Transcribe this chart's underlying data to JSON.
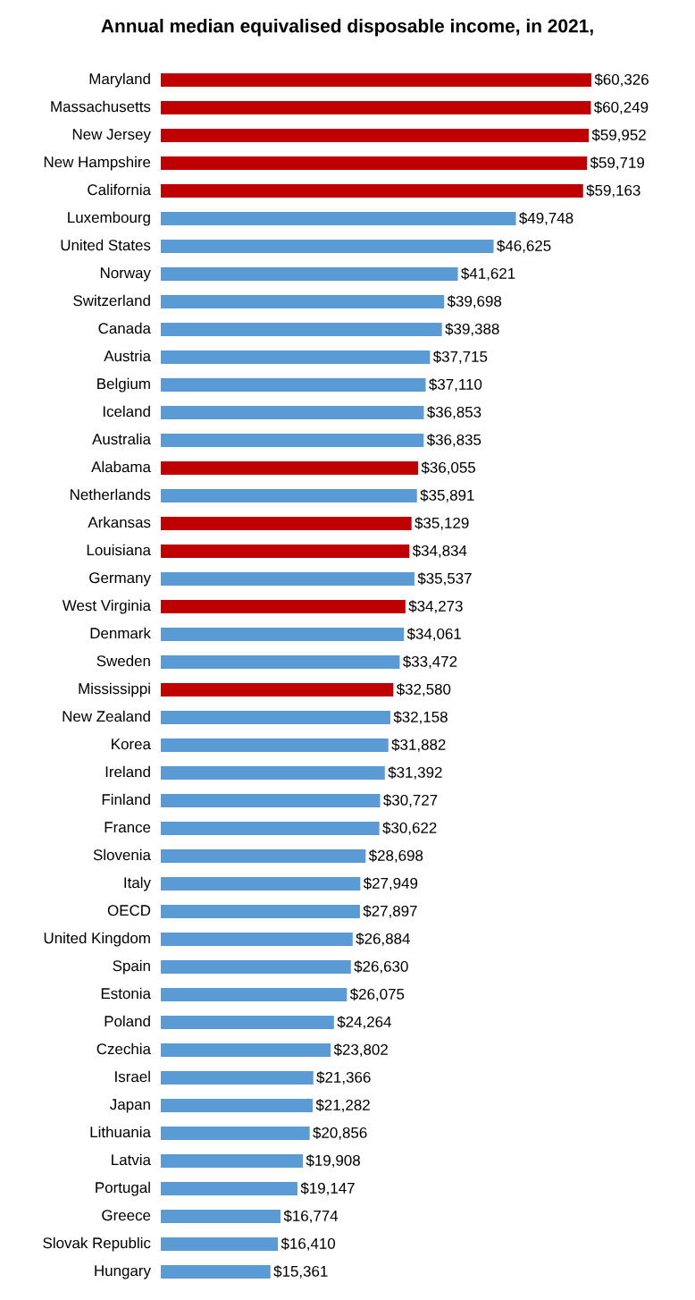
{
  "chart_data": {
    "type": "bar",
    "orientation": "horizontal",
    "title": "Annual median equivalised disposable income, in 2021,",
    "categories": [
      "Maryland",
      "Massachusetts",
      "New Jersey",
      "New Hampshire",
      "California",
      "Luxembourg",
      "United States",
      "Norway",
      "Switzerland",
      "Canada",
      "Austria",
      "Belgium",
      "Iceland",
      "Australia",
      "Alabama",
      "Netherlands",
      "Arkansas",
      "Louisiana",
      "Germany",
      "West Virginia",
      "Denmark",
      "Sweden",
      "Mississippi",
      "New Zealand",
      "Korea",
      "Ireland",
      "Finland",
      "France",
      "Slovenia",
      "Italy",
      "OECD",
      "United Kingdom",
      "Spain",
      "Estonia",
      "Poland",
      "Czechia",
      "Israel",
      "Japan",
      "Lithuania",
      "Latvia",
      "Portugal",
      "Greece",
      "Slovak Republic",
      "Hungary"
    ],
    "values": [
      60326,
      60249,
      59952,
      59719,
      59163,
      49748,
      46625,
      41621,
      39698,
      39388,
      37715,
      37110,
      36853,
      36835,
      36055,
      35891,
      35129,
      34834,
      35537,
      34273,
      34061,
      33472,
      32580,
      32158,
      31882,
      31392,
      30727,
      30622,
      28698,
      27949,
      27897,
      26884,
      26630,
      26075,
      24264,
      23802,
      21366,
      21282,
      20856,
      19908,
      19147,
      16774,
      16410,
      15361
    ],
    "value_labels": [
      "$60,326",
      "$60,249",
      "$59,952",
      "$59,719",
      "$59,163",
      "$49,748",
      "$46,625",
      "$41,621",
      "$39,698",
      "$39,388",
      "$37,715",
      "$37,110",
      "$36,853",
      "$36,835",
      "$36,055",
      "$35,891",
      "$35,129",
      "$34,834",
      "$35,537",
      "$34,273",
      "$34,061",
      "$33,472",
      "$32,580",
      "$32,158",
      "$31,882",
      "$31,392",
      "$30,727",
      "$30,622",
      "$28,698",
      "$27,949",
      "$27,897",
      "$26,884",
      "$26,630",
      "$26,075",
      "$24,264",
      "$23,802",
      "$21,366",
      "$21,282",
      "$20,856",
      "$19,908",
      "$19,147",
      "$16,774",
      "$16,410",
      "$15,361"
    ],
    "colors": [
      "#c00000",
      "#c00000",
      "#c00000",
      "#c00000",
      "#c00000",
      "#5b9bd5",
      "#5b9bd5",
      "#5b9bd5",
      "#5b9bd5",
      "#5b9bd5",
      "#5b9bd5",
      "#5b9bd5",
      "#5b9bd5",
      "#5b9bd5",
      "#c00000",
      "#5b9bd5",
      "#c00000",
      "#c00000",
      "#5b9bd5",
      "#c00000",
      "#5b9bd5",
      "#5b9bd5",
      "#c00000",
      "#5b9bd5",
      "#5b9bd5",
      "#5b9bd5",
      "#5b9bd5",
      "#5b9bd5",
      "#5b9bd5",
      "#5b9bd5",
      "#5b9bd5",
      "#5b9bd5",
      "#5b9bd5",
      "#5b9bd5",
      "#5b9bd5",
      "#5b9bd5",
      "#5b9bd5",
      "#5b9bd5",
      "#5b9bd5",
      "#5b9bd5",
      "#5b9bd5",
      "#5b9bd5",
      "#5b9bd5",
      "#5b9bd5"
    ]
  }
}
